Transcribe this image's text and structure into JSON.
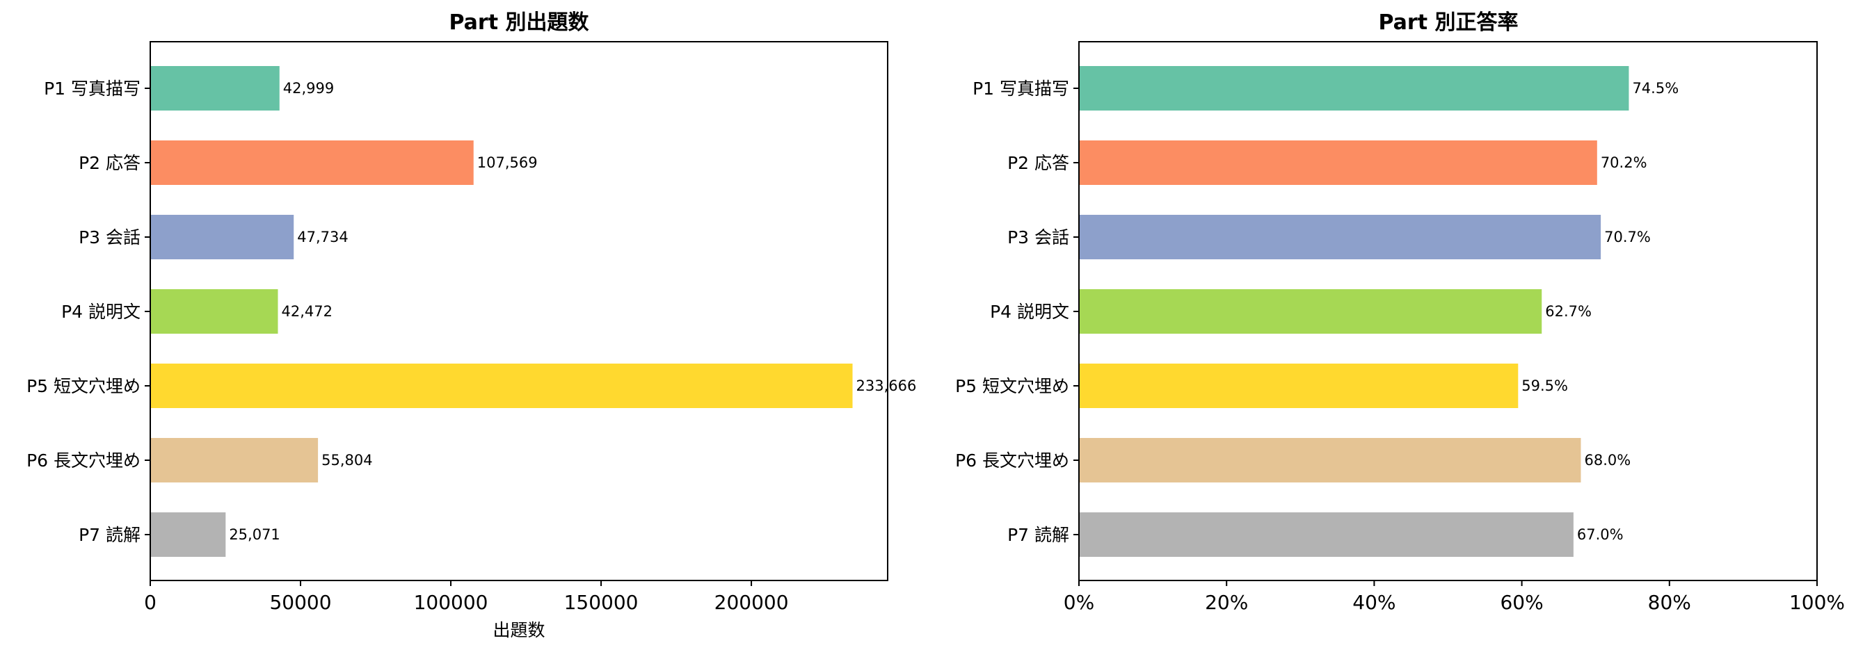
{
  "chart_data": [
    {
      "type": "bar",
      "orientation": "horizontal",
      "title": "Part 別出題数",
      "xlabel": "出題数",
      "ylabel": "",
      "categories": [
        "P1 写真描写",
        "P2 応答",
        "P3 会話",
        "P4 説明文",
        "P5 短文穴埋め",
        "P6 長文穴埋め",
        "P7 読解"
      ],
      "values": [
        42999,
        107569,
        47734,
        42472,
        233666,
        55804,
        25071
      ],
      "value_labels": [
        "42,999",
        "107,569",
        "47,734",
        "42,472",
        "233,666",
        "55,804",
        "25,071"
      ],
      "colors": [
        "#66c2a5",
        "#fc8d62",
        "#8da0cb",
        "#a6d854",
        "#ffd92f",
        "#e5c494",
        "#b3b3b3"
      ],
      "xlim": [
        0,
        245349
      ],
      "xticks": [
        0,
        50000,
        100000,
        150000,
        200000
      ],
      "xtick_labels": [
        "0",
        "50000",
        "100000",
        "150000",
        "200000"
      ],
      "grid": false
    },
    {
      "type": "bar",
      "orientation": "horizontal",
      "title": "Part 別正答率",
      "xlabel": "",
      "ylabel": "",
      "categories": [
        "P1 写真描写",
        "P2 応答",
        "P3 会話",
        "P4 説明文",
        "P5 短文穴埋め",
        "P6 長文穴埋め",
        "P7 読解"
      ],
      "values": [
        74.5,
        70.2,
        70.7,
        62.7,
        59.5,
        68.0,
        67.0
      ],
      "value_labels": [
        "74.5%",
        "70.2%",
        "70.7%",
        "62.7%",
        "59.5%",
        "68.0%",
        "67.0%"
      ],
      "colors": [
        "#66c2a5",
        "#fc8d62",
        "#8da0cb",
        "#a6d854",
        "#ffd92f",
        "#e5c494",
        "#b3b3b3"
      ],
      "xlim": [
        0,
        100
      ],
      "xticks": [
        0,
        20,
        40,
        60,
        80,
        100
      ],
      "xtick_labels": [
        "0%",
        "20%",
        "40%",
        "60%",
        "80%",
        "100%"
      ],
      "grid": false
    }
  ]
}
